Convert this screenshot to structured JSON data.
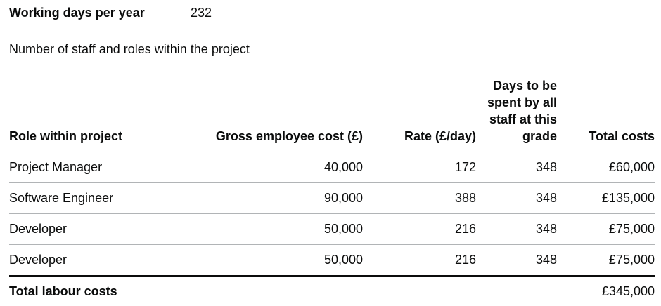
{
  "summary": {
    "label": "Working days per year",
    "value": "232"
  },
  "intro": "Number of staff and roles within the project",
  "table": {
    "headers": {
      "role": "Role within project",
      "gross": "Gross employee cost (£)",
      "rate": "Rate (£/day)",
      "days": "Days to be spent by all staff at this grade",
      "total": "Total costs"
    },
    "rows": [
      {
        "role": "Project Manager",
        "gross": "40,000",
        "rate": "172",
        "days": "348",
        "total": "£60,000"
      },
      {
        "role": "Software Engineer",
        "gross": "90,000",
        "rate": "388",
        "days": "348",
        "total": "£135,000"
      },
      {
        "role": "Developer",
        "gross": "50,000",
        "rate": "216",
        "days": "348",
        "total": "£75,000"
      },
      {
        "role": "Developer",
        "gross": "50,000",
        "rate": "216",
        "days": "348",
        "total": "£75,000"
      }
    ],
    "total_row": {
      "label": "Total labour costs",
      "value": "£345,000"
    }
  }
}
